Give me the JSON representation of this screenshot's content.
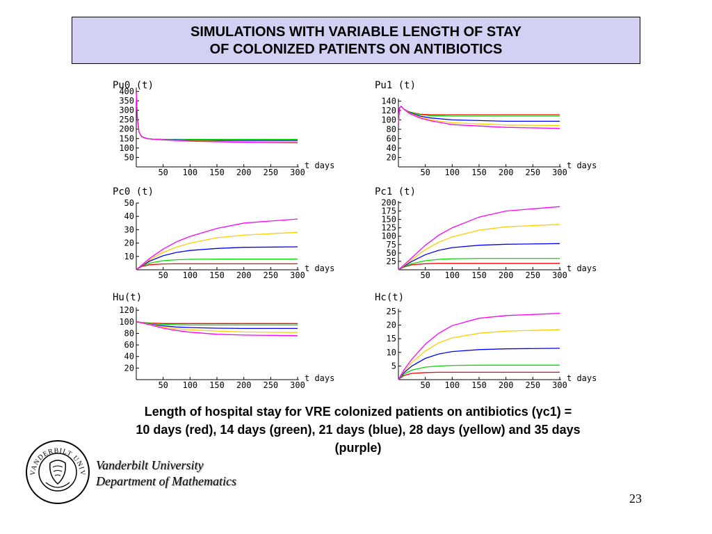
{
  "slide": {
    "title_line1": "SIMULATIONS WITH VARIABLE LENGTH OF STAY",
    "title_line2": "OF COLONIZED PATIENTS ON ANTIBIOTICS",
    "caption_line1": "Length of hospital stay for VRE colonized patients on antibiotics (γc1)  =",
    "caption_line2": "10 days (red), 14 days (green), 21 days (blue), 28 days (yellow) and 35 days",
    "caption_line3": "(purple)",
    "university_line1": "Vanderbilt University",
    "university_line2": "Department of Mathematics",
    "page_number": "23",
    "logo_text": "VANDERBILT UNIVERSITY"
  },
  "chart_data": [
    {
      "type": "line",
      "ylabel": "Pu0 (t)",
      "xlabel": "t days",
      "x_ticks": [
        50,
        100,
        150,
        200,
        250,
        300
      ],
      "y_ticks": [
        50,
        100,
        150,
        200,
        250,
        300,
        350,
        400
      ],
      "xlim": [
        0,
        300
      ],
      "ylim": [
        0,
        420
      ],
      "series": [
        {
          "color": "#ff0000",
          "x": [
            0,
            2,
            5,
            10,
            20,
            30,
            50,
            100,
            200,
            300
          ],
          "y": [
            400,
            260,
            185,
            160,
            150,
            147,
            145,
            145,
            145,
            145
          ]
        },
        {
          "color": "#00dd00",
          "x": [
            0,
            2,
            5,
            10,
            20,
            30,
            50,
            100,
            200,
            300
          ],
          "y": [
            400,
            260,
            185,
            160,
            150,
            147,
            146,
            146,
            146,
            146
          ]
        },
        {
          "color": "#0000ff",
          "x": [
            0,
            2,
            5,
            10,
            20,
            30,
            50,
            100,
            200,
            300
          ],
          "y": [
            400,
            260,
            185,
            160,
            150,
            147,
            145,
            141,
            140,
            140
          ]
        },
        {
          "color": "#ffcc00",
          "x": [
            0,
            2,
            5,
            10,
            20,
            30,
            50,
            100,
            200,
            300
          ],
          "y": [
            400,
            260,
            185,
            160,
            150,
            147,
            144,
            138,
            134,
            133
          ]
        },
        {
          "color": "#ff00ff",
          "x": [
            0,
            2,
            5,
            10,
            20,
            30,
            50,
            100,
            200,
            300
          ],
          "y": [
            400,
            260,
            185,
            160,
            150,
            147,
            143,
            136,
            130,
            128
          ]
        }
      ]
    },
    {
      "type": "line",
      "ylabel": "Pu1 (t)",
      "xlabel": "t days",
      "x_ticks": [
        50,
        100,
        150,
        200,
        250,
        300
      ],
      "y_ticks": [
        20,
        40,
        60,
        80,
        100,
        120,
        140
      ],
      "xlim": [
        0,
        300
      ],
      "ylim": [
        0,
        145
      ],
      "series": [
        {
          "color": "#ff0000",
          "x": [
            0,
            2,
            5,
            10,
            20,
            40,
            60,
            100,
            200,
            300
          ],
          "y": [
            90,
            125,
            129,
            123,
            117,
            112,
            111,
            111,
            111,
            111
          ]
        },
        {
          "color": "#00dd00",
          "x": [
            0,
            2,
            5,
            10,
            20,
            40,
            60,
            100,
            200,
            300
          ],
          "y": [
            90,
            125,
            129,
            123,
            117,
            111,
            109,
            108,
            108,
            108
          ]
        },
        {
          "color": "#0000ff",
          "x": [
            0,
            2,
            5,
            10,
            20,
            40,
            60,
            100,
            200,
            300
          ],
          "y": [
            90,
            125,
            129,
            123,
            116,
            108,
            104,
            100,
            97,
            97
          ]
        },
        {
          "color": "#ffcc00",
          "x": [
            0,
            2,
            5,
            10,
            20,
            40,
            60,
            100,
            200,
            300
          ],
          "y": [
            90,
            125,
            129,
            123,
            115,
            106,
            100,
            94,
            89,
            88
          ]
        },
        {
          "color": "#ff00ff",
          "x": [
            0,
            2,
            5,
            10,
            20,
            40,
            60,
            100,
            200,
            300
          ],
          "y": [
            90,
            125,
            129,
            123,
            114,
            104,
            98,
            90,
            84,
            82
          ]
        }
      ]
    },
    {
      "type": "line",
      "ylabel": "Pc0 (t)",
      "xlabel": "t days",
      "x_ticks": [
        50,
        100,
        150,
        200,
        250,
        300
      ],
      "y_ticks": [
        10,
        20,
        30,
        40,
        50
      ],
      "xlim": [
        0,
        300
      ],
      "ylim": [
        0,
        50
      ],
      "series": [
        {
          "color": "#ff0000",
          "x": [
            0,
            10,
            25,
            50,
            75,
            100,
            150,
            200,
            300
          ],
          "y": [
            0,
            2.5,
            3.8,
            4.4,
            4.5,
            4.5,
            4.5,
            4.5,
            4.5
          ]
        },
        {
          "color": "#00dd00",
          "x": [
            0,
            10,
            25,
            50,
            75,
            100,
            150,
            200,
            300
          ],
          "y": [
            0,
            3,
            5,
            6.8,
            7.5,
            7.8,
            8,
            8,
            8
          ]
        },
        {
          "color": "#0000ff",
          "x": [
            0,
            10,
            25,
            50,
            75,
            100,
            150,
            200,
            300
          ],
          "y": [
            0,
            3,
            6.5,
            10.5,
            13,
            14.5,
            16,
            16.8,
            17.2
          ]
        },
        {
          "color": "#ffcc00",
          "x": [
            0,
            10,
            25,
            50,
            75,
            100,
            150,
            200,
            300
          ],
          "y": [
            0,
            3.3,
            7.5,
            13,
            17,
            20,
            24,
            26,
            28
          ]
        },
        {
          "color": "#ff00ff",
          "x": [
            0,
            10,
            25,
            50,
            75,
            100,
            150,
            200,
            300
          ],
          "y": [
            0,
            3.5,
            8.5,
            15.5,
            21,
            25,
            31,
            35,
            38
          ]
        }
      ]
    },
    {
      "type": "line",
      "ylabel": "Pc1 (t)",
      "xlabel": "t days",
      "x_ticks": [
        50,
        100,
        150,
        200,
        250,
        300
      ],
      "y_ticks": [
        25,
        50,
        75,
        100,
        125,
        150,
        175,
        200
      ],
      "xlim": [
        0,
        300
      ],
      "ylim": [
        0,
        205
      ],
      "series": [
        {
          "color": "#ff0000",
          "x": [
            0,
            10,
            25,
            50,
            75,
            100,
            150,
            200,
            300
          ],
          "y": [
            0,
            8,
            15,
            18,
            19,
            19,
            19,
            19,
            19
          ]
        },
        {
          "color": "#00dd00",
          "x": [
            0,
            10,
            25,
            50,
            75,
            100,
            150,
            200,
            300
          ],
          "y": [
            0,
            9,
            18,
            27,
            31,
            33,
            34,
            34,
            34
          ]
        },
        {
          "color": "#0000ff",
          "x": [
            0,
            10,
            25,
            50,
            75,
            100,
            150,
            200,
            300
          ],
          "y": [
            0,
            10,
            25,
            45,
            58,
            66,
            73,
            76,
            78
          ]
        },
        {
          "color": "#ffcc00",
          "x": [
            0,
            10,
            25,
            50,
            75,
            100,
            150,
            200,
            300
          ],
          "y": [
            0,
            12,
            30,
            60,
            82,
            98,
            118,
            128,
            135
          ]
        },
        {
          "color": "#ff00ff",
          "x": [
            0,
            10,
            25,
            50,
            75,
            100,
            150,
            200,
            300
          ],
          "y": [
            0,
            14,
            36,
            73,
            103,
            125,
            157,
            175,
            188
          ]
        }
      ]
    },
    {
      "type": "line",
      "ylabel": "Hu(t)",
      "xlabel": "t days",
      "x_ticks": [
        50,
        100,
        150,
        200,
        250,
        300
      ],
      "y_ticks": [
        20,
        40,
        60,
        80,
        100,
        120
      ],
      "xlim": [
        0,
        300
      ],
      "ylim": [
        0,
        125
      ],
      "series": [
        {
          "color": "#ff0000",
          "x": [
            0,
            10,
            25,
            50,
            75,
            100,
            150,
            200,
            300
          ],
          "y": [
            100,
            99,
            98,
            97,
            97,
            97,
            97,
            97,
            97
          ]
        },
        {
          "color": "#00dd00",
          "x": [
            0,
            10,
            25,
            50,
            75,
            100,
            150,
            200,
            300
          ],
          "y": [
            100,
            99,
            97.5,
            95.5,
            95,
            94.5,
            94.5,
            94.5,
            94.5
          ]
        },
        {
          "color": "#0000ff",
          "x": [
            0,
            10,
            25,
            50,
            75,
            100,
            150,
            200,
            300
          ],
          "y": [
            100,
            98.5,
            96,
            93,
            91,
            90,
            89,
            88.5,
            88.5
          ]
        },
        {
          "color": "#ffcc00",
          "x": [
            0,
            10,
            25,
            50,
            75,
            100,
            150,
            200,
            300
          ],
          "y": [
            100,
            98.5,
            95.5,
            91,
            88,
            86,
            84,
            82.5,
            81.5
          ]
        },
        {
          "color": "#ff00ff",
          "x": [
            0,
            10,
            25,
            50,
            75,
            100,
            150,
            200,
            300
          ],
          "y": [
            100,
            98,
            95,
            89,
            85,
            82,
            78.5,
            77,
            76
          ]
        }
      ]
    },
    {
      "type": "line",
      "ylabel": "Hc(t)",
      "xlabel": "t days",
      "x_ticks": [
        50,
        100,
        150,
        200,
        250,
        300
      ],
      "y_ticks": [
        5,
        10,
        15,
        20,
        25
      ],
      "xlim": [
        0,
        300
      ],
      "ylim": [
        0,
        26
      ],
      "series": [
        {
          "color": "#ff0000",
          "x": [
            0,
            10,
            25,
            50,
            75,
            100,
            150,
            200,
            300
          ],
          "y": [
            0,
            1.5,
            2.3,
            2.6,
            2.7,
            2.7,
            2.7,
            2.7,
            2.7
          ]
        },
        {
          "color": "#00dd00",
          "x": [
            0,
            10,
            25,
            50,
            75,
            100,
            150,
            200,
            300
          ],
          "y": [
            0,
            2,
            3.5,
            4.6,
            5,
            5.2,
            5.3,
            5.3,
            5.3
          ]
        },
        {
          "color": "#0000ff",
          "x": [
            0,
            10,
            25,
            50,
            75,
            100,
            150,
            200,
            300
          ],
          "y": [
            0,
            2.5,
            5,
            7.8,
            9.4,
            10.3,
            11,
            11.3,
            11.5
          ]
        },
        {
          "color": "#ffcc00",
          "x": [
            0,
            10,
            25,
            50,
            75,
            100,
            150,
            200,
            300
          ],
          "y": [
            0,
            3,
            6.3,
            10.5,
            13.5,
            15.3,
            17,
            17.8,
            18.3
          ]
        },
        {
          "color": "#ff00ff",
          "x": [
            0,
            10,
            25,
            50,
            75,
            100,
            150,
            200,
            300
          ],
          "y": [
            0,
            3.5,
            7.5,
            13,
            17,
            19.8,
            22.5,
            23.5,
            24.3
          ]
        }
      ]
    }
  ]
}
